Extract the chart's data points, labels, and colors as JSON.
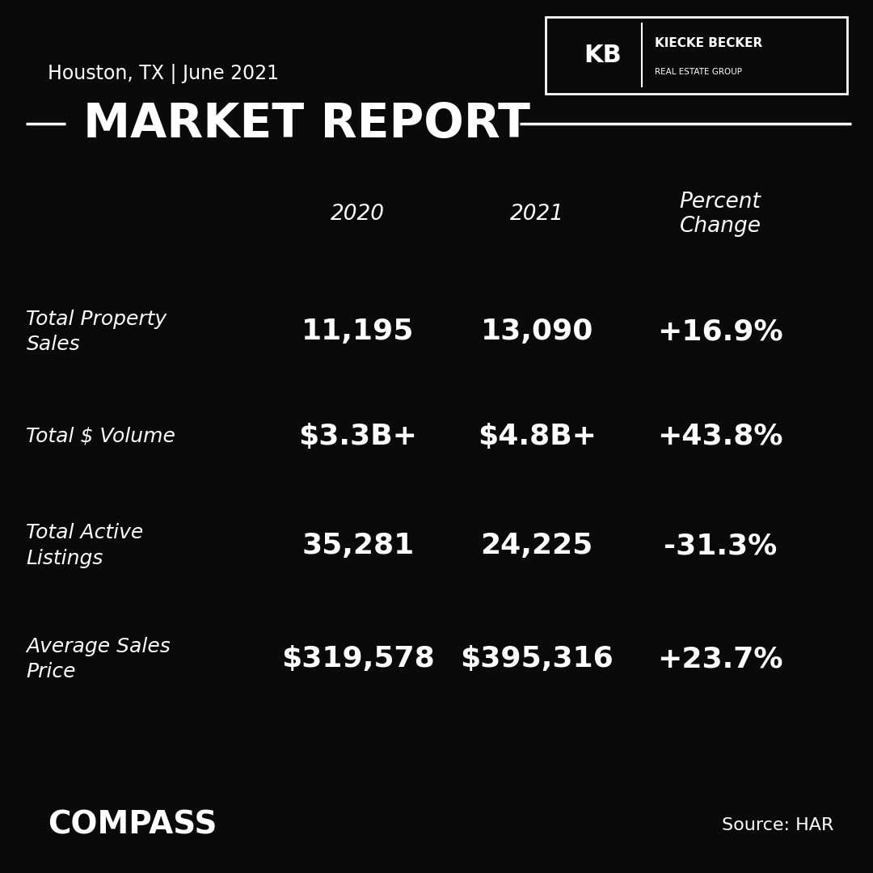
{
  "bg_color": "#0a0a0a",
  "white": "#ffffff",
  "location": "Houston, TX | June 2021",
  "title": "MARKET REPORT",
  "col_2020": "2020",
  "col_2021": "2021",
  "col_pct": "Percent\nChange",
  "rows": [
    {
      "label": "Total Property\nSales",
      "val_2020": "11,195",
      "val_2021": "13,090",
      "pct": "+16.9%"
    },
    {
      "label": "Total $ Volume",
      "val_2020": "$3.3B+",
      "val_2021": "$4.8B+",
      "pct": "+43.8%"
    },
    {
      "label": "Total Active\nListings",
      "val_2020": "35,281",
      "val_2021": "24,225",
      "pct": "-31.3%"
    },
    {
      "label": "Average Sales\nPrice",
      "val_2020": "$319,578",
      "val_2021": "$395,316",
      "pct": "+23.7%"
    }
  ],
  "compass_text": "COMPASS",
  "source_text": "Source: HAR",
  "logo_text_top": "KIECKE BECKER",
  "logo_text_bot": "REAL ESTATE GROUP",
  "logo_kb": "KB"
}
